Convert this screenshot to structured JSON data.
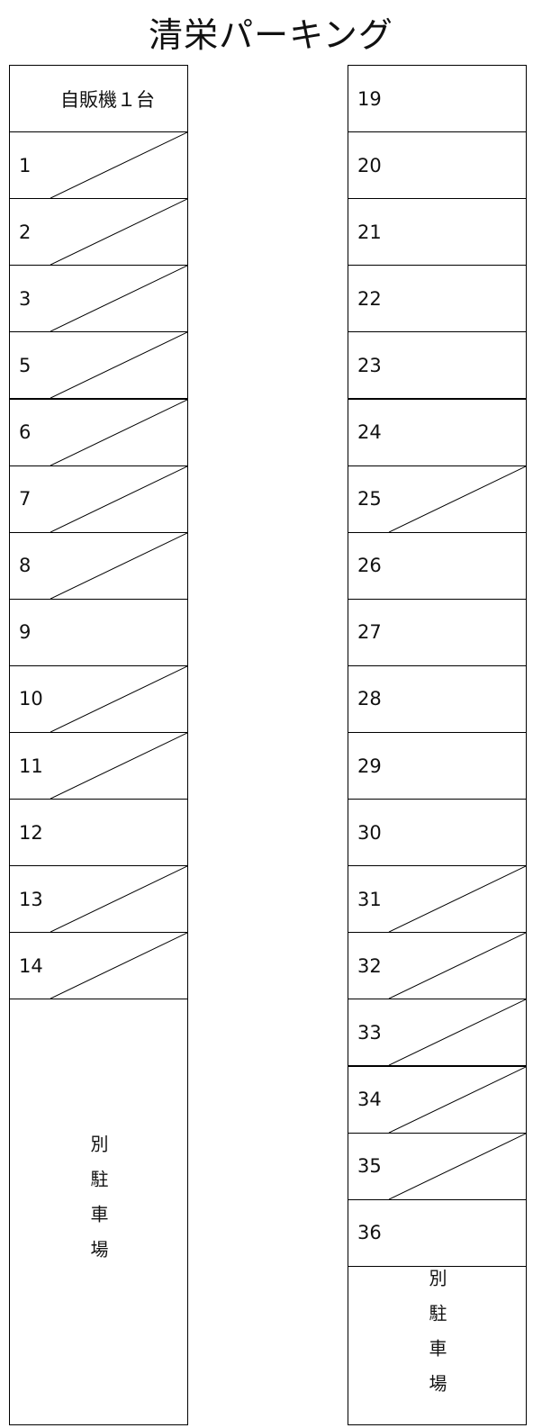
{
  "title": "清栄パーキング",
  "left": {
    "header": "自販機１台",
    "slots": [
      {
        "number": "1",
        "occupied": true
      },
      {
        "number": "2",
        "occupied": true
      },
      {
        "number": "3",
        "occupied": true
      },
      {
        "number": "5",
        "occupied": true
      },
      {
        "number": "6",
        "occupied": true
      },
      {
        "number": "7",
        "occupied": true
      },
      {
        "number": "8",
        "occupied": true
      },
      {
        "number": "9",
        "occupied": false
      },
      {
        "number": "10",
        "occupied": true
      },
      {
        "number": "11",
        "occupied": true
      },
      {
        "number": "12",
        "occupied": false
      },
      {
        "number": "13",
        "occupied": true
      },
      {
        "number": "14",
        "occupied": true
      }
    ],
    "annex": "別駐車場"
  },
  "right": {
    "slots": [
      {
        "number": "19",
        "occupied": false
      },
      {
        "number": "20",
        "occupied": false
      },
      {
        "number": "21",
        "occupied": false
      },
      {
        "number": "22",
        "occupied": false
      },
      {
        "number": "23",
        "occupied": false
      },
      {
        "number": "24",
        "occupied": false
      },
      {
        "number": "25",
        "occupied": true
      },
      {
        "number": "26",
        "occupied": false
      },
      {
        "number": "27",
        "occupied": false
      },
      {
        "number": "28",
        "occupied": false
      },
      {
        "number": "29",
        "occupied": false
      },
      {
        "number": "30",
        "occupied": false
      },
      {
        "number": "31",
        "occupied": true
      },
      {
        "number": "32",
        "occupied": true
      },
      {
        "number": "33",
        "occupied": true
      },
      {
        "number": "34",
        "occupied": true
      },
      {
        "number": "35",
        "occupied": true
      },
      {
        "number": "36",
        "occupied": false
      }
    ],
    "annex": "別駐車場"
  }
}
